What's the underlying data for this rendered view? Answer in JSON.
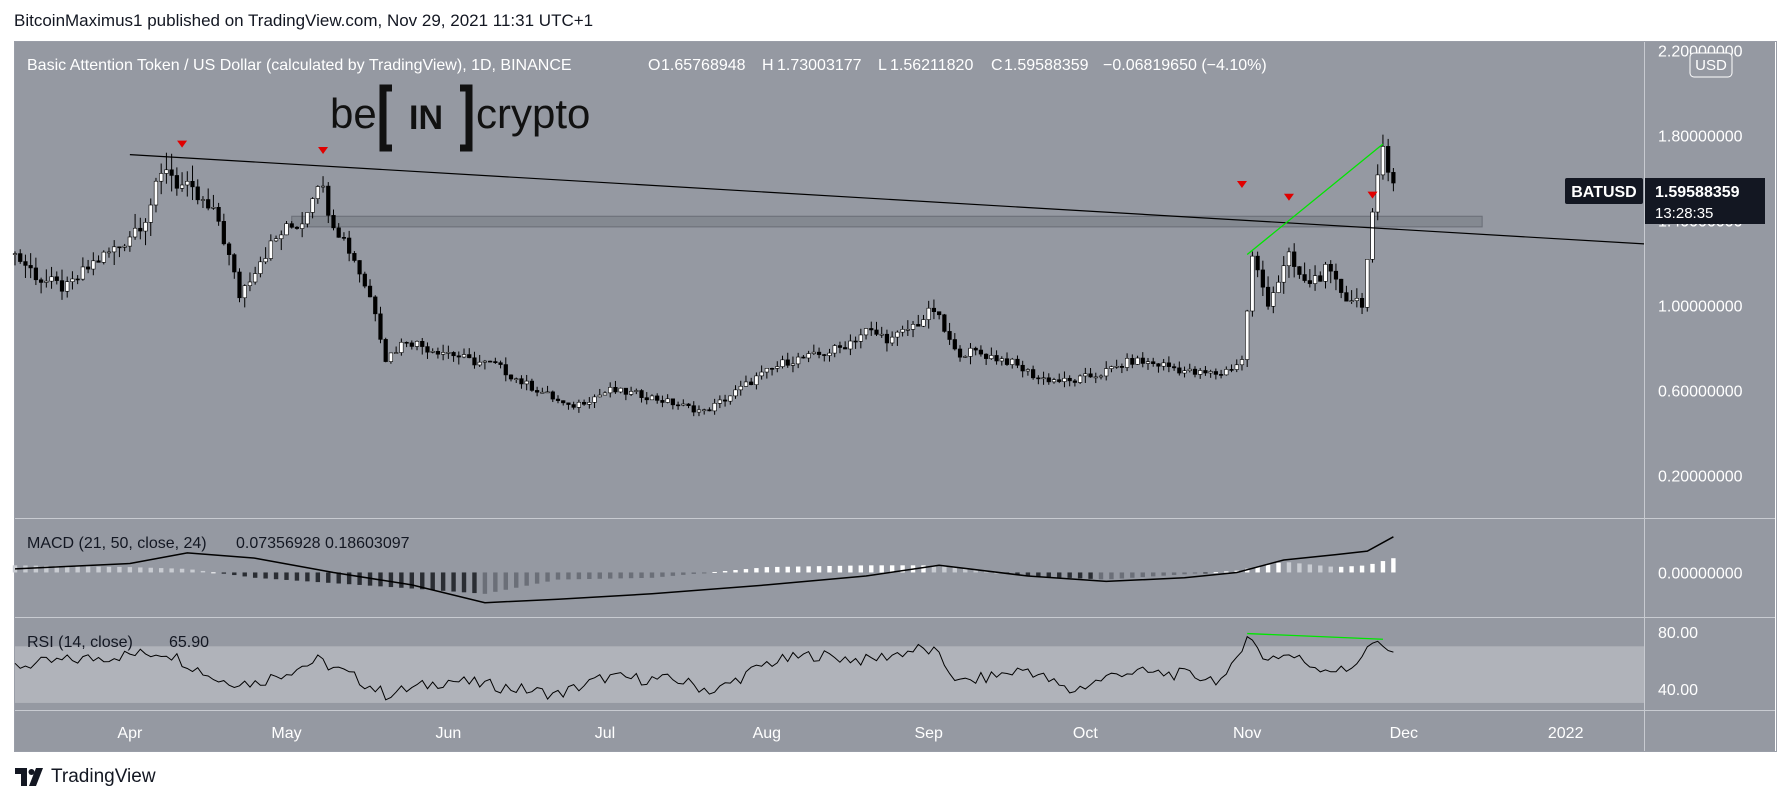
{
  "header": {
    "published": "BitcoinMaximus1 published on TradingView.com, Nov 29, 2021 11:31 UTC+1"
  },
  "footer": {
    "brand": "TradingView"
  },
  "logo": {
    "text_left": "be",
    "text_mid": "IN",
    "text_right": "crypto"
  },
  "colors": {
    "pane_bg": "#9599a2",
    "rsi_band": "#b0b3ba",
    "candle_up": "#ffffff",
    "candle_down": "#000000",
    "marker": "#e00000",
    "trend_green": "#00e600",
    "trendline": "#000000",
    "zone": "#777b84"
  },
  "chart_data": [
    {
      "type": "candlestick",
      "title": "Basic Attention Token / US Dollar (calculated by TradingView), 1D, BINANCE",
      "ohlc": {
        "O_label": "O",
        "O": "1.65768948",
        "H_label": "H",
        "H": "1.73003177",
        "L_label": "L",
        "L": "1.56211820",
        "C_label": "C",
        "C": "1.59588359",
        "change": "−0.06819650 (−4.10%)"
      },
      "currency_badge": "USD",
      "symbol_label": "BATUSD",
      "last_price": "1.59588359",
      "countdown": "13:28:35",
      "x_tick_labels": [
        "Apr",
        "May",
        "Jun",
        "Jul",
        "Aug",
        "Sep",
        "Oct",
        "Nov",
        "Dec",
        "2022"
      ],
      "x_tick_dates": [
        "2021-04-01",
        "2021-05-01",
        "2021-06-01",
        "2021-07-01",
        "2021-08-01",
        "2021-09-01",
        "2021-10-01",
        "2021-11-01",
        "2021-12-01",
        "2022-01-01"
      ],
      "y_tick_labels": [
        "2.20000000",
        "1.80000000",
        "1.40000000",
        "1.00000000",
        "0.60000000",
        "0.20000000"
      ],
      "y_ticks": [
        2.2,
        1.8,
        1.4,
        1.0,
        0.6,
        0.2
      ],
      "x_range": [
        "2021-03-10",
        "2022-01-16"
      ],
      "ylim": [
        0.0,
        2.24
      ],
      "close_series": {
        "x": [
          "2021-03-10",
          "2021-03-15",
          "2021-03-20",
          "2021-03-25",
          "2021-03-30",
          "2021-04-04",
          "2021-04-08",
          "2021-04-10",
          "2021-04-14",
          "2021-04-18",
          "2021-04-22",
          "2021-04-26",
          "2021-04-30",
          "2021-05-04",
          "2021-05-07",
          "2021-05-10",
          "2021-05-14",
          "2021-05-18",
          "2021-05-20",
          "2021-05-24",
          "2021-05-28",
          "2021-06-01",
          "2021-06-05",
          "2021-06-10",
          "2021-06-15",
          "2021-06-20",
          "2021-06-24",
          "2021-06-28",
          "2021-07-02",
          "2021-07-08",
          "2021-07-14",
          "2021-07-20",
          "2021-07-24",
          "2021-07-30",
          "2021-08-05",
          "2021-08-10",
          "2021-08-15",
          "2021-08-20",
          "2021-08-25",
          "2021-08-30",
          "2021-09-02",
          "2021-09-06",
          "2021-09-10",
          "2021-09-16",
          "2021-09-22",
          "2021-09-28",
          "2021-10-04",
          "2021-10-10",
          "2021-10-16",
          "2021-10-22",
          "2021-10-27",
          "2021-10-31",
          "2021-11-02",
          "2021-11-05",
          "2021-11-09",
          "2021-11-12",
          "2021-11-16",
          "2021-11-20",
          "2021-11-23",
          "2021-11-25",
          "2021-11-27",
          "2021-11-29"
        ],
        "y": [
          1.24,
          1.12,
          1.08,
          1.2,
          1.28,
          1.42,
          1.66,
          1.58,
          1.5,
          1.4,
          1.05,
          1.22,
          1.34,
          1.4,
          1.6,
          1.4,
          1.22,
          0.98,
          0.75,
          0.84,
          0.8,
          0.78,
          0.74,
          0.72,
          0.64,
          0.58,
          0.52,
          0.56,
          0.6,
          0.58,
          0.54,
          0.5,
          0.56,
          0.66,
          0.74,
          0.76,
          0.8,
          0.88,
          0.84,
          0.92,
          0.98,
          0.78,
          0.78,
          0.74,
          0.66,
          0.64,
          0.68,
          0.74,
          0.72,
          0.68,
          0.68,
          0.74,
          1.22,
          1.02,
          1.22,
          1.1,
          1.16,
          1.04,
          1.02,
          1.4,
          1.75,
          1.6
        ]
      },
      "resistance_zone": [
        1.37,
        1.42
      ],
      "descending_trendline": {
        "x": [
          "2021-04-01",
          "2022-01-16"
        ],
        "y": [
          1.71,
          1.29
        ]
      },
      "green_line": {
        "x": [
          "2021-11-01",
          "2021-11-27"
        ],
        "y": [
          1.24,
          1.76
        ]
      },
      "bearish_markers": {
        "x": [
          "2021-04-11",
          "2021-05-08",
          "2021-10-31",
          "2021-11-09",
          "2021-11-25"
        ],
        "y": [
          1.71,
          1.68,
          1.52,
          1.46,
          1.47
        ]
      }
    },
    {
      "type": "line",
      "title": "MACD (21, 50, close, 24)",
      "values_label": "0.07356928  0.18603097",
      "y_tick_labels": [
        "0.00000000"
      ],
      "ylim": [
        -0.25,
        0.3
      ],
      "line": {
        "x": [
          "2021-03-10",
          "2021-04-01",
          "2021-04-12",
          "2021-04-25",
          "2021-05-10",
          "2021-05-25",
          "2021-06-08",
          "2021-06-22",
          "2021-07-10",
          "2021-08-01",
          "2021-08-20",
          "2021-09-03",
          "2021-09-20",
          "2021-10-05",
          "2021-10-20",
          "2021-10-30",
          "2021-11-08",
          "2021-11-18",
          "2021-11-24",
          "2021-11-29"
        ],
        "y": [
          0.02,
          0.05,
          0.11,
          0.08,
          0.0,
          -0.07,
          -0.17,
          -0.15,
          -0.12,
          -0.07,
          -0.02,
          0.04,
          -0.02,
          -0.05,
          -0.03,
          0.0,
          0.07,
          0.1,
          0.12,
          0.2
        ]
      },
      "histogram": {
        "x": [
          "2021-03-10",
          "2021-04-01",
          "2021-04-12",
          "2021-04-25",
          "2021-05-10",
          "2021-05-25",
          "2021-06-08",
          "2021-06-22",
          "2021-07-10",
          "2021-08-01",
          "2021-08-20",
          "2021-09-03",
          "2021-09-20",
          "2021-10-05",
          "2021-10-20",
          "2021-10-30",
          "2021-11-08",
          "2021-11-18",
          "2021-11-24",
          "2021-11-29"
        ],
        "y": [
          0.04,
          0.03,
          0.02,
          -0.03,
          -0.06,
          -0.09,
          -0.12,
          -0.04,
          -0.03,
          0.03,
          0.04,
          0.04,
          -0.02,
          -0.04,
          -0.01,
          0.01,
          0.06,
          0.03,
          0.04,
          0.08
        ]
      }
    },
    {
      "type": "line",
      "title": "RSI (14, close)",
      "value": "65.90",
      "y_tick_labels": [
        "80.00",
        "40.00"
      ],
      "y_ticks": [
        80,
        40
      ],
      "ylim": [
        25,
        90
      ],
      "band": [
        30,
        70
      ],
      "x": [
        "2021-03-10",
        "2021-03-20",
        "2021-04-01",
        "2021-04-08",
        "2021-04-18",
        "2021-04-25",
        "2021-05-07",
        "2021-05-14",
        "2021-05-20",
        "2021-06-01",
        "2021-06-10",
        "2021-06-22",
        "2021-07-01",
        "2021-07-15",
        "2021-07-22",
        "2021-08-01",
        "2021-08-10",
        "2021-08-20",
        "2021-08-30",
        "2021-09-02",
        "2021-09-07",
        "2021-09-20",
        "2021-09-28",
        "2021-10-08",
        "2021-10-20",
        "2021-10-28",
        "2021-11-01",
        "2021-11-04",
        "2021-11-09",
        "2021-11-14",
        "2021-11-20",
        "2021-11-25",
        "2021-11-27",
        "2021-11-29"
      ],
      "y": [
        56,
        60,
        64,
        66,
        46,
        44,
        60,
        48,
        36,
        46,
        42,
        36,
        48,
        46,
        38,
        58,
        64,
        60,
        68,
        66,
        44,
        54,
        38,
        52,
        50,
        46,
        79,
        62,
        64,
        56,
        52,
        72,
        68,
        65.9
      ],
      "green_line": {
        "x": [
          "2021-11-01",
          "2021-11-27"
        ],
        "y": [
          79,
          75
        ]
      }
    }
  ]
}
